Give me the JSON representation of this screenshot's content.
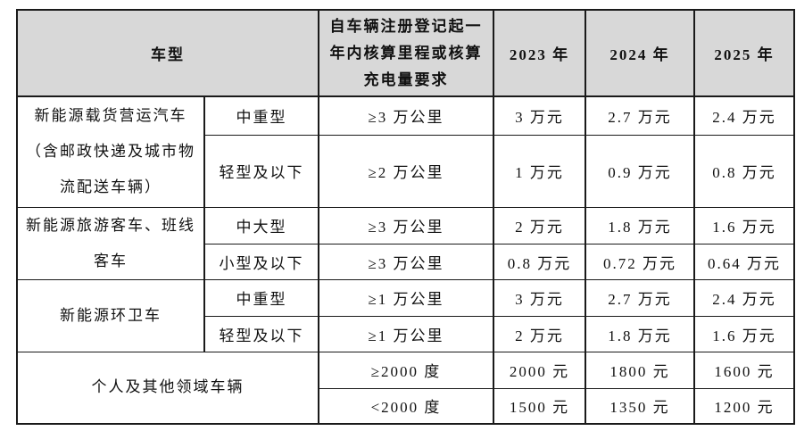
{
  "document": {
    "background_color": "#ffffff",
    "header_bg_color": "#d8d8d8",
    "border_color": "#1a1a1a",
    "text_color": "#111111"
  },
  "table": {
    "headers": {
      "vehicle_type": "车型",
      "requirement": "自车辆注册登记起一年内核算里程或核算充电量要求",
      "year_2023": "2023 年",
      "year_2024": "2024 年",
      "year_2025": "2025 年"
    },
    "rows": [
      {
        "category": "新能源载货营运汽车（含邮政快递及城市物流配送车辆）",
        "subtype": "中重型",
        "requirement": "≥3 万公里",
        "y2023": "3 万元",
        "y2024": "2.7 万元",
        "y2025": "2.4 万元"
      },
      {
        "subtype": "轻型及以下",
        "requirement": "≥2 万公里",
        "y2023": "1 万元",
        "y2024": "0.9 万元",
        "y2025": "0.8 万元"
      },
      {
        "category": "新能源旅游客车、班线客车",
        "subtype": "中大型",
        "requirement": "≥3 万公里",
        "y2023": "2 万元",
        "y2024": "1.8 万元",
        "y2025": "1.6 万元"
      },
      {
        "subtype": "小型及以下",
        "requirement": "≥3 万公里",
        "y2023": "0.8 万元",
        "y2024": "0.72 万元",
        "y2025": "0.64 万元"
      },
      {
        "category": "新能源环卫车",
        "subtype": "中重型",
        "requirement": "≥1 万公里",
        "y2023": "3 万元",
        "y2024": "2.7 万元",
        "y2025": "2.4 万元"
      },
      {
        "subtype": "轻型及以下",
        "requirement": "≥1 万公里",
        "y2023": "2 万元",
        "y2024": "1.8 万元",
        "y2025": "1.6 万元"
      },
      {
        "category": "个人及其他领域车辆",
        "requirement": "≥2000 度",
        "y2023": "2000 元",
        "y2024": "1800 元",
        "y2025": "1600 元"
      },
      {
        "requirement": "<2000 度",
        "y2023": "1500 元",
        "y2024": "1350 元",
        "y2025": "1200 元"
      }
    ]
  }
}
